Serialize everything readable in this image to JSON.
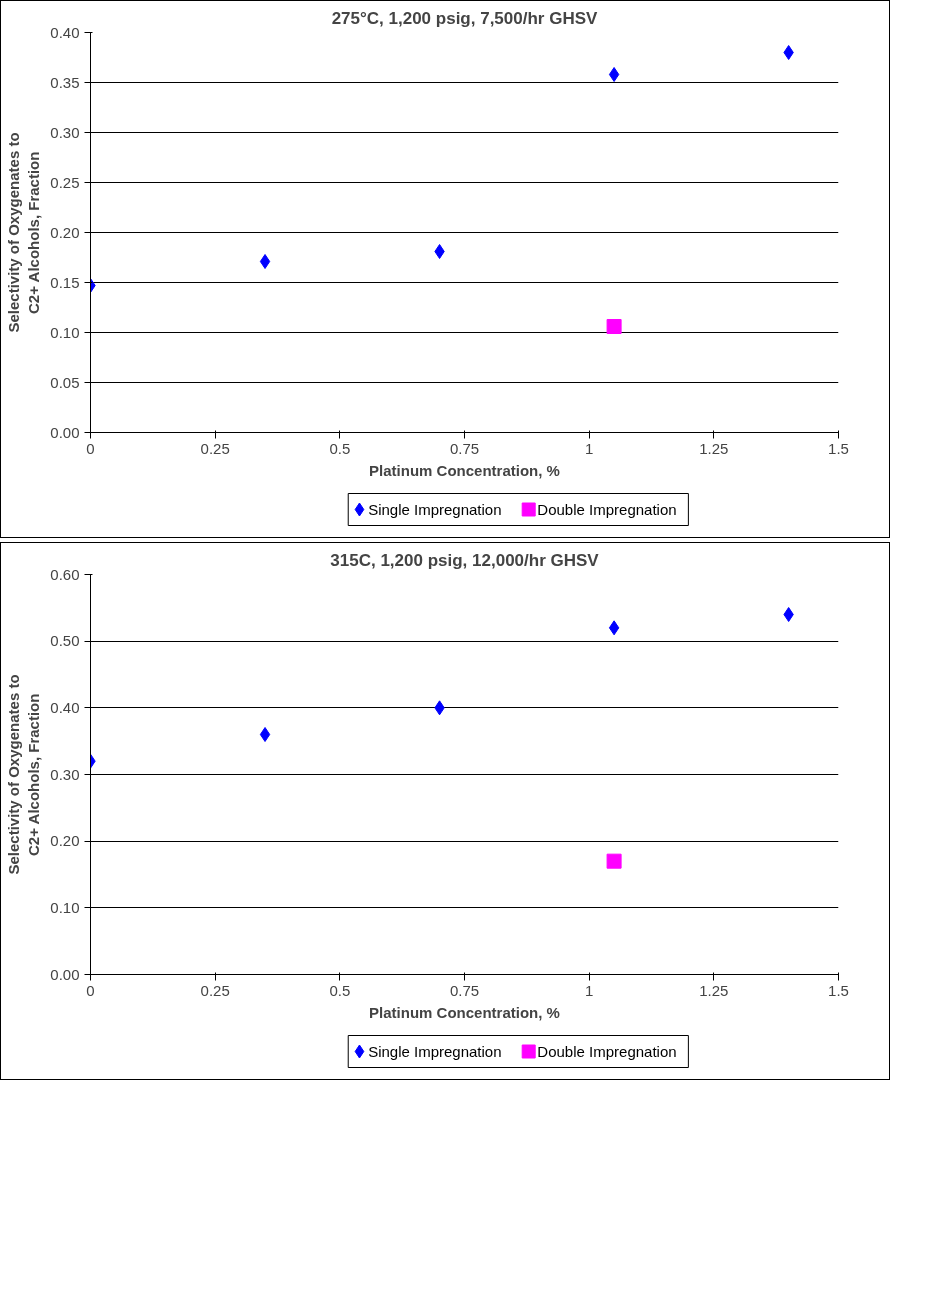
{
  "chart_data": [
    {
      "type": "scatter",
      "title": "275°C, 1,200 psig, 7,500/hr GHSV",
      "xlabel": "Platinum Concentration, %",
      "ylabel": "Selectivity of Oxygenates to C2+ Alcohols, Fraction",
      "series": [
        {
          "name": "Single Impregnation",
          "color": "#0000ff",
          "marker": "diamond",
          "x": [
            0,
            0.35,
            0.7,
            1.05,
            1.4
          ],
          "values": [
            0.147,
            0.171,
            0.181,
            0.358,
            0.38
          ]
        },
        {
          "name": "Double Impregnation",
          "color": "#ff00ff",
          "marker": "square",
          "x": [
            1.05
          ],
          "values": [
            0.106
          ]
        }
      ],
      "xlim": [
        0,
        1.5
      ],
      "xticks": [
        0,
        0.25,
        0.5,
        0.75,
        1,
        1.25,
        1.5
      ],
      "ylim": [
        0,
        0.4
      ],
      "yticks": [
        {
          "value": 0,
          "label": "0.00"
        },
        {
          "value": 0.05,
          "label": "0.05"
        },
        {
          "value": 0.1,
          "label": "0.10"
        },
        {
          "value": 0.15,
          "label": "0.15"
        },
        {
          "value": 0.2,
          "label": "0.20"
        },
        {
          "value": 0.25,
          "label": "0.25"
        },
        {
          "value": 0.3,
          "label": "0.30"
        },
        {
          "value": 0.35,
          "label": "0.35"
        },
        {
          "value": 0.4,
          "label": "0.40"
        }
      ],
      "grid": "y",
      "legend": "bottom"
    },
    {
      "type": "scatter",
      "title": "315C, 1,200 psig, 12,000/hr GHSV",
      "xlabel": "Platinum Concentration, %",
      "ylabel": "Selectivity of Oxygenates to C2+ Alcohols, Fraction",
      "series": [
        {
          "name": "Single Impregnation",
          "color": "#0000ff",
          "marker": "diamond",
          "x": [
            0,
            0.35,
            0.7,
            1.05,
            1.4
          ],
          "values": [
            0.32,
            0.36,
            0.4,
            0.52,
            0.54
          ]
        },
        {
          "name": "Double Impregnation",
          "color": "#ff00ff",
          "marker": "square",
          "x": [
            1.05
          ],
          "values": [
            0.17
          ]
        }
      ],
      "xlim": [
        0,
        1.5
      ],
      "xticks": [
        0,
        0.25,
        0.5,
        0.75,
        1,
        1.25,
        1.5
      ],
      "ylim": [
        0,
        0.6
      ],
      "yticks": [
        {
          "value": 0,
          "label": "0.00"
        },
        {
          "value": 0.1,
          "label": "0.10"
        },
        {
          "value": 0.2,
          "label": "0.20"
        },
        {
          "value": 0.3,
          "label": "0.30"
        },
        {
          "value": 0.4,
          "label": "0.40"
        },
        {
          "value": 0.5,
          "label": "0.50"
        },
        {
          "value": 0.6,
          "label": "0.60"
        }
      ],
      "grid": "y",
      "legend": "bottom"
    }
  ]
}
